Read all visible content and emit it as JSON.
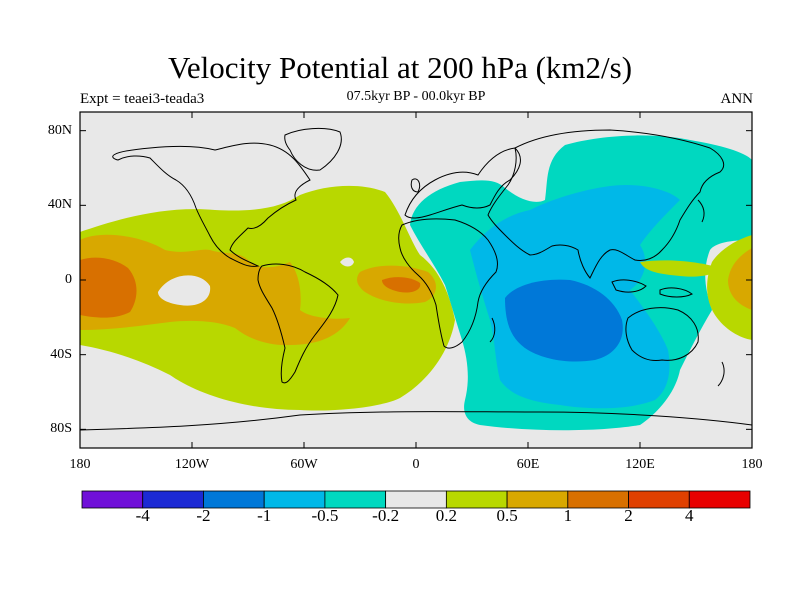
{
  "title": "Velocity Potential at 200 hPa (km2/s)",
  "experiment_label": "Expt = teaei3-teada3",
  "period_label": "07.5kyr BP - 00.0kyr BP",
  "season_label": "ANN",
  "lat_ticks": [
    {
      "label": "80N",
      "lat": 80
    },
    {
      "label": "40N",
      "lat": 40
    },
    {
      "label": "0",
      "lat": 0
    },
    {
      "label": "40S",
      "lat": -40
    },
    {
      "label": "80S",
      "lat": -80
    }
  ],
  "lon_ticks": [
    {
      "label": "180",
      "lon": -180
    },
    {
      "label": "120W",
      "lon": -120
    },
    {
      "label": "60W",
      "lon": -60
    },
    {
      "label": "0",
      "lon": 0
    },
    {
      "label": "60E",
      "lon": 60
    },
    {
      "label": "120E",
      "lon": 120
    },
    {
      "label": "180",
      "lon": 180
    }
  ],
  "colorbar": {
    "colors": [
      "#7010d8",
      "#1c2ad4",
      "#0078d8",
      "#00b8e8",
      "#00d8c0",
      "#e8e8e8",
      "#b8d800",
      "#d8a800",
      "#d87000",
      "#e04000",
      "#e80000"
    ],
    "labels": [
      "-4",
      "-2",
      "-1",
      "-0.5",
      "-0.2",
      "0.2",
      "0.5",
      "1",
      "2",
      "4"
    ]
  },
  "map_colors": {
    "ocean_background": "#e8e8e8",
    "neg_weak": "#00d8c0",
    "neg_mid": "#00b8e8",
    "neg_strong": "#0078d8",
    "pos_weak": "#b8d800",
    "pos_mid": "#d8a800",
    "pos_strong": "#d87000",
    "pos_max": "#e04000",
    "coast": "#000000"
  }
}
